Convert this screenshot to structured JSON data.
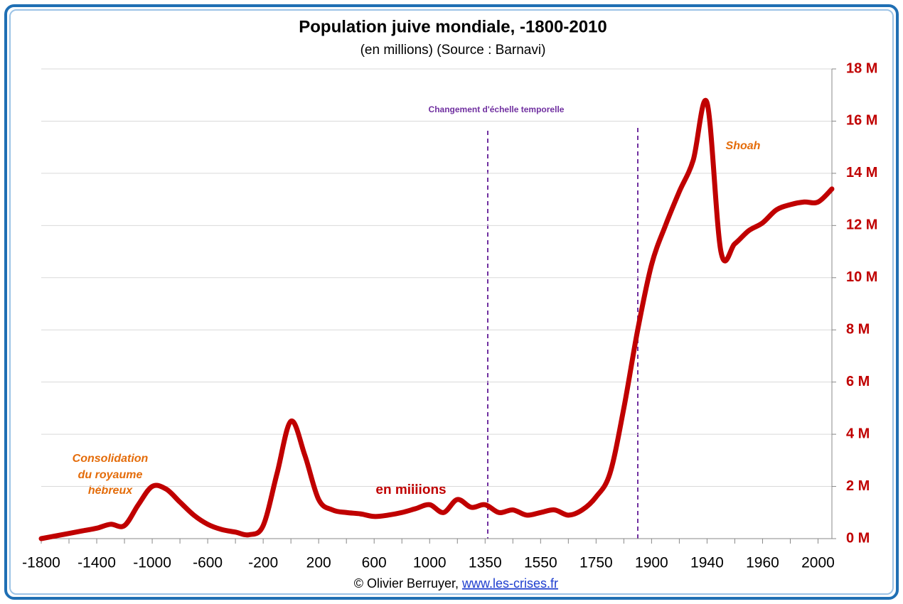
{
  "chart_data": {
    "type": "line",
    "title": "Population juive mondiale, -1800-2010",
    "subtitle": "(en millions) (Source : Barnavi)",
    "categories": [
      "-1800",
      null,
      null,
      null,
      "-1400",
      null,
      null,
      null,
      "-1000",
      null,
      null,
      null,
      "-600",
      null,
      null,
      null,
      "-200",
      null,
      null,
      null,
      "200",
      null,
      null,
      null,
      "600",
      null,
      null,
      null,
      "1000",
      null,
      null,
      null,
      "1350",
      null,
      null,
      null,
      "1550",
      null,
      null,
      null,
      "1750",
      null,
      null,
      null,
      "1900",
      null,
      null,
      null,
      "1940",
      null,
      null,
      null,
      "1960",
      null,
      null,
      null,
      "2000",
      null
    ],
    "series": [
      {
        "name": "en millions",
        "color": "#c00000",
        "values": [
          0,
          0.1,
          0.2,
          0.3,
          0.4,
          0.55,
          0.5,
          1.3,
          2.0,
          1.9,
          1.4,
          0.9,
          0.55,
          0.35,
          0.25,
          0.15,
          0.5,
          2.5,
          4.5,
          3.2,
          1.5,
          1.1,
          1.0,
          0.95,
          0.85,
          0.9,
          1.0,
          1.15,
          1.3,
          1.0,
          1.5,
          1.2,
          1.3,
          1.0,
          1.1,
          0.9,
          1.0,
          1.1,
          0.9,
          1.1,
          1.6,
          2.5,
          5.0,
          8.0,
          10.5,
          12.0,
          13.3,
          14.5,
          16.7,
          11.0,
          11.3,
          11.8,
          12.1,
          12.6,
          12.8,
          12.9,
          12.9,
          13.4
        ]
      }
    ],
    "ylim": [
      0,
      18
    ],
    "yticks": [
      {
        "value": 0,
        "label": "0 M"
      },
      {
        "value": 2,
        "label": "2 M"
      },
      {
        "value": 4,
        "label": "4 M"
      },
      {
        "value": 6,
        "label": "6 M"
      },
      {
        "value": 8,
        "label": "8 M"
      },
      {
        "value": 10,
        "label": "10 M"
      },
      {
        "value": 12,
        "label": "12 M"
      },
      {
        "value": 14,
        "label": "14 M"
      },
      {
        "value": 16,
        "label": "16 M"
      },
      {
        "value": 18,
        "label": "18 M"
      }
    ],
    "grid": true,
    "annotations": {
      "scale_change": "Changement d'échelle temporelle",
      "shoah": "Shoah",
      "consolidation": [
        "Consolidation",
        "du royaume",
        "hébreux"
      ]
    }
  },
  "footer": {
    "credit": "© Olivier Berruyer,",
    "link": "www.les-crises.fr"
  }
}
